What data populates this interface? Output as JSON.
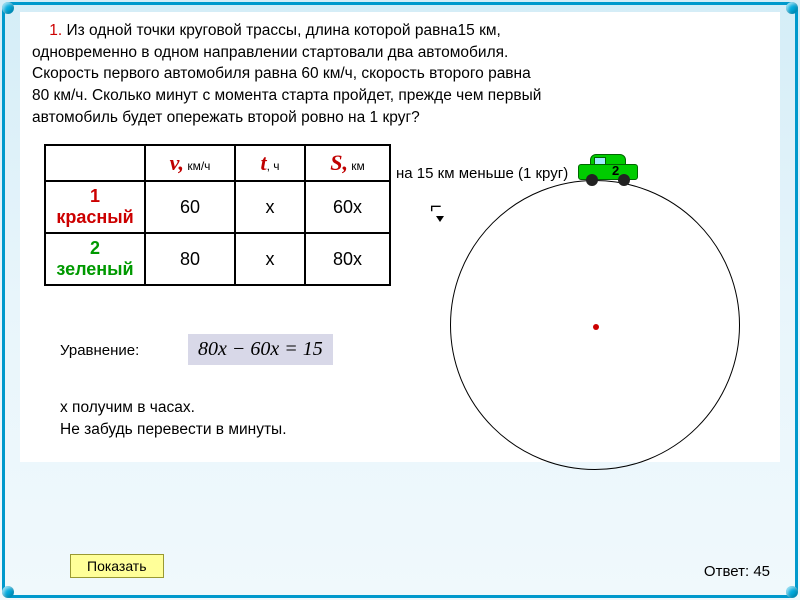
{
  "problem": {
    "number": "1.",
    "text_line1": " Из одной точки круговой трассы, длина которой равна15 км,",
    "text_line2": "одновременно в одном направлении стартовали два автомобиля.",
    "text_line3": "Скорость первого автомобиля равна 60 км/ч, скорость второго равна",
    "text_line4": "80 км/ч. Сколько минут с момента старта пройдет, прежде чем первый",
    "text_line5": "автомобиль будет опережать второй ровно на 1 круг?"
  },
  "table": {
    "headers": {
      "v_sym": "v,",
      "v_unit": " км/ч",
      "t_sym": "t",
      "t_unit": ", ч",
      "s_sym": "S,",
      "s_unit": " км"
    },
    "row1": {
      "label": "1 красный",
      "v": "60",
      "t": "x",
      "s": "60x"
    },
    "row2": {
      "label": "2 зеленый",
      "v": "80",
      "t": "x",
      "s": "80x"
    }
  },
  "diagram": {
    "note": "на 15 км меньше (1 круг)",
    "car_number": "2",
    "track_color": "#000000",
    "car_color": "#00cc00",
    "center_dot_color": "#cc0000"
  },
  "equation": {
    "label": "Уравнение:",
    "formula": "80x − 60x = 15"
  },
  "hint": {
    "line1": "x получим в часах.",
    "line2": "Не забудь перевести в минуты."
  },
  "button": {
    "show": "Показать"
  },
  "answer": {
    "label": "Ответ: ",
    "value": "45"
  },
  "colors": {
    "frame": "#0099cc",
    "bg_top": "#d4edf7",
    "problem_num": "#cc0000",
    "row1": "#cc0000",
    "row2": "#009900",
    "eq_box_bg": "#d8d8e8",
    "btn_bg": "#ffff99"
  }
}
